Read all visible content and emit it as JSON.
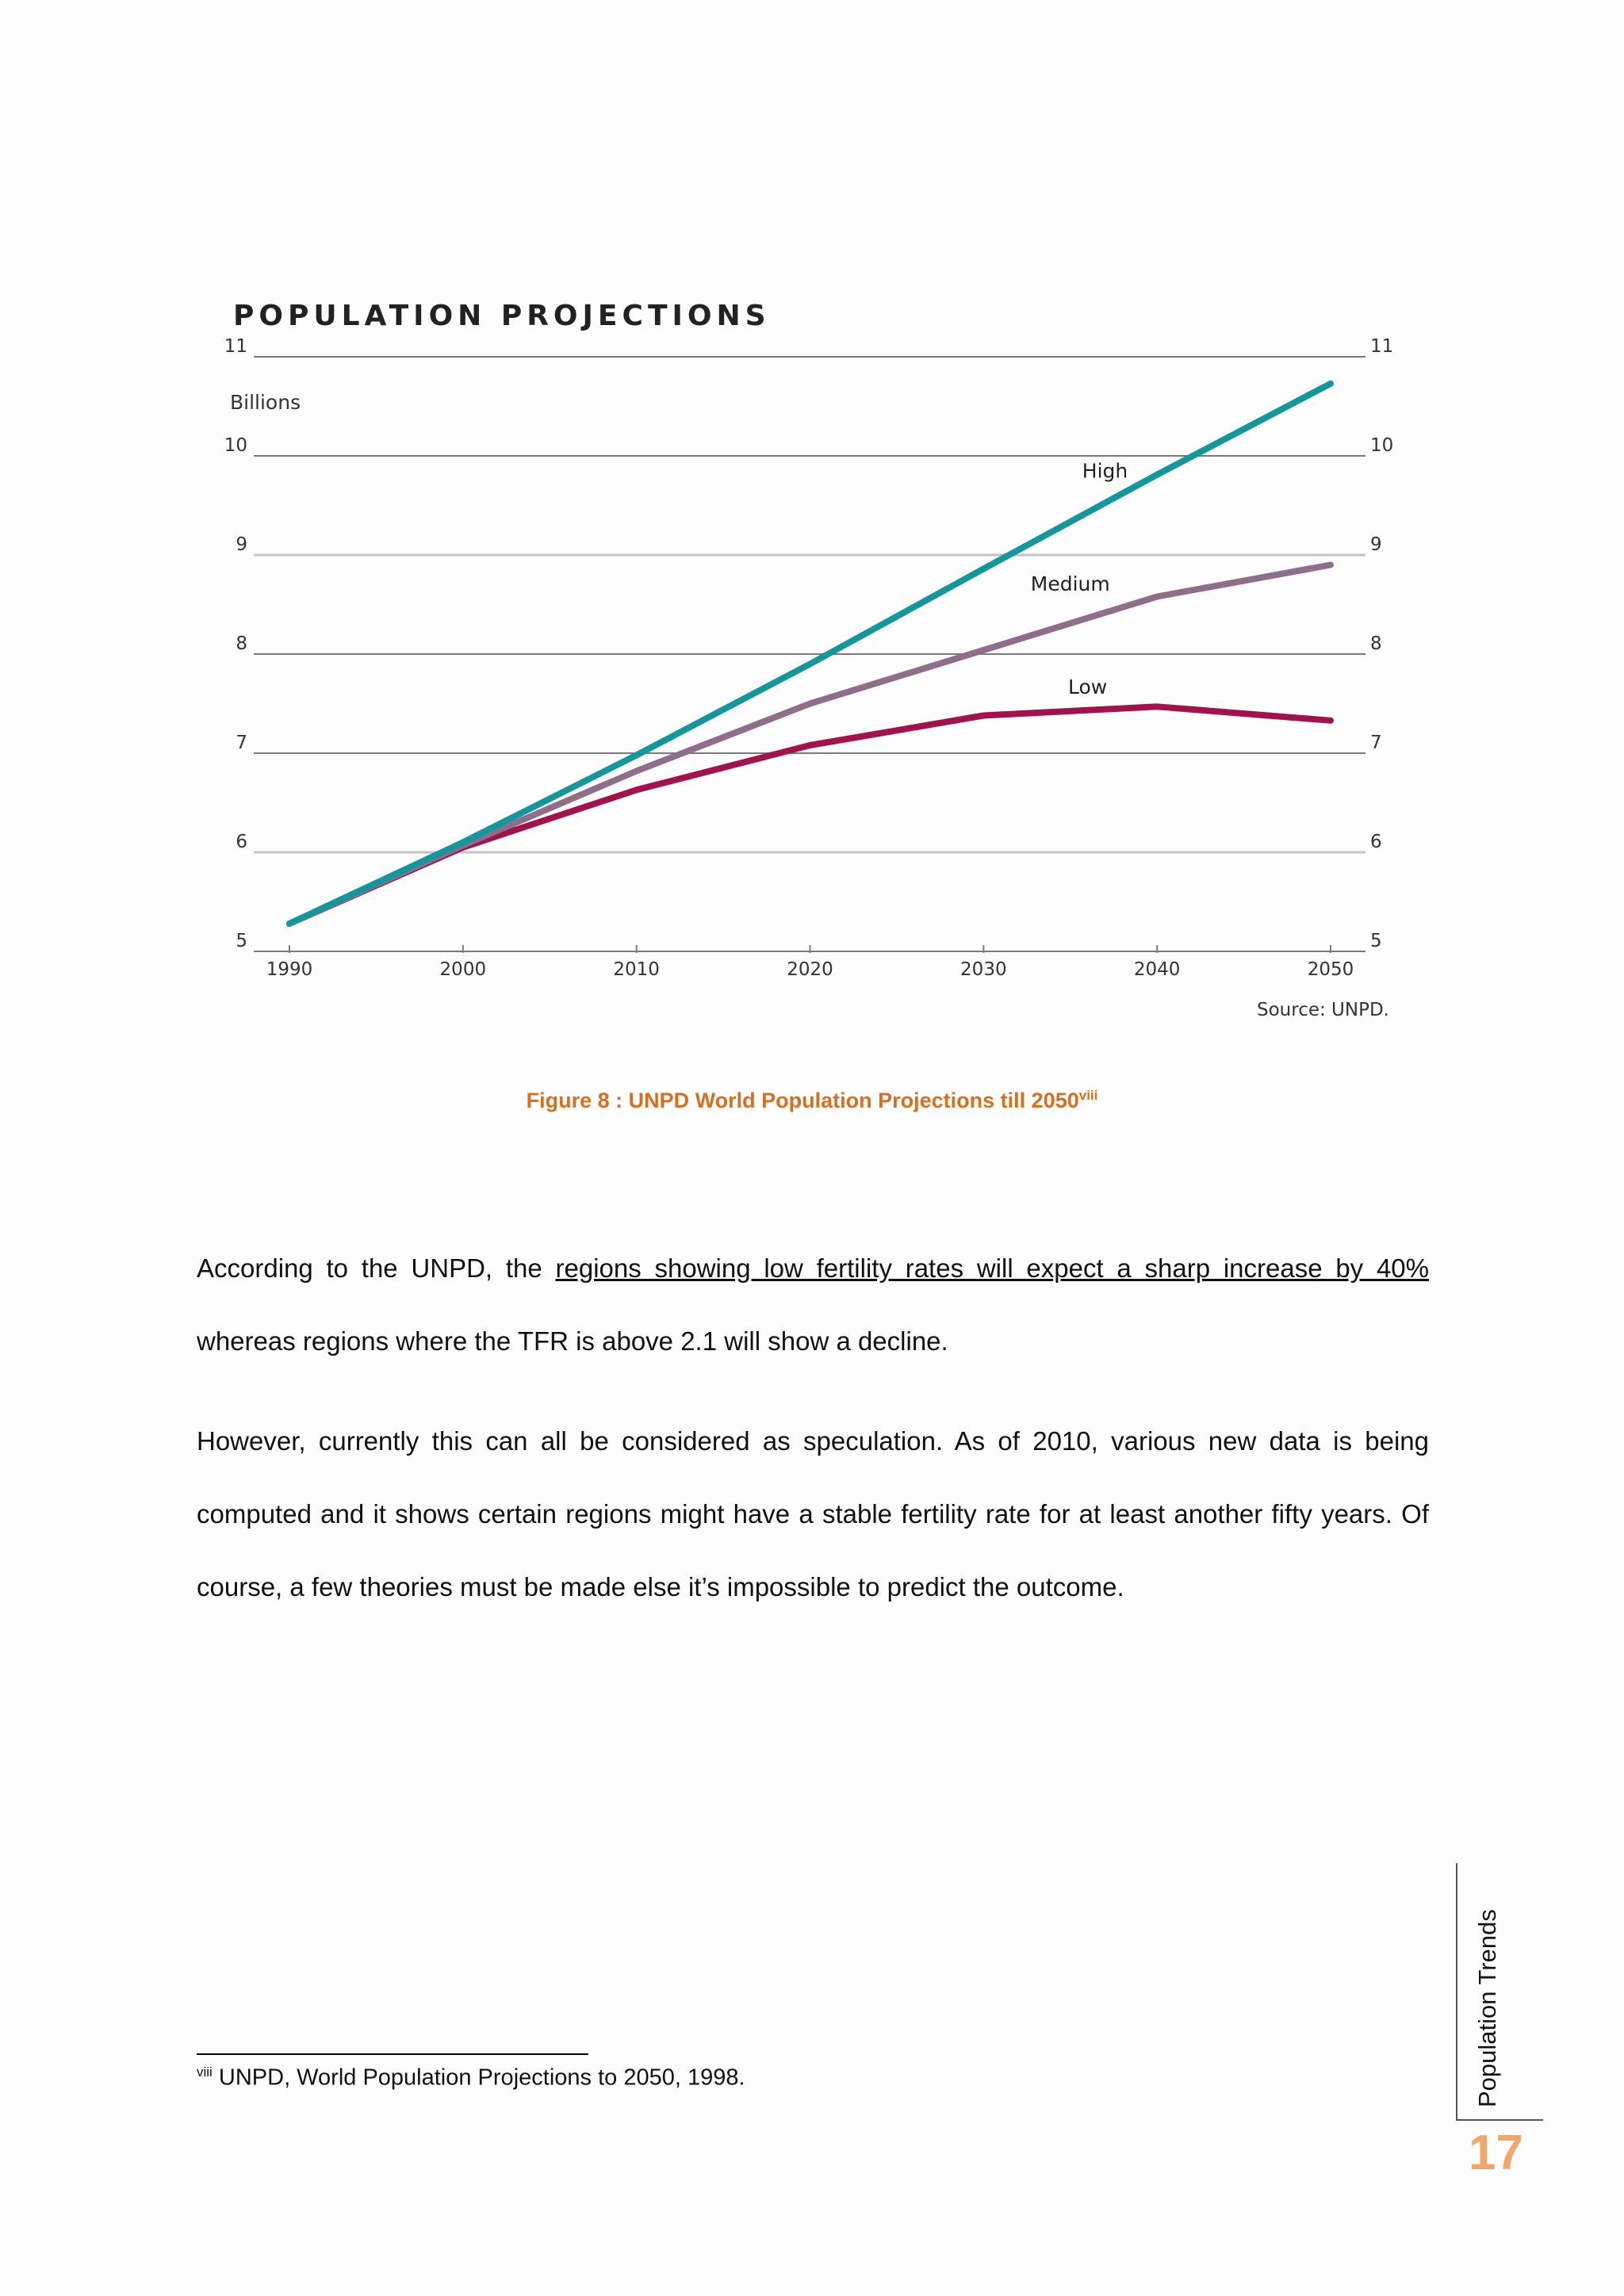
{
  "chart_data": {
    "type": "line",
    "title": "POPULATION PROJECTIONS",
    "ylabel": "Billions",
    "source": "Source: UNPD.",
    "x": [
      1990,
      2000,
      2010,
      2020,
      2030,
      2040,
      2050
    ],
    "x_tick_labels": [
      "1990",
      "2000",
      "2010",
      "2020",
      "2030",
      "2040",
      "2050"
    ],
    "y_ticks": [
      5,
      6,
      7,
      8,
      9,
      10,
      11
    ],
    "y_tick_labels": [
      "5",
      "6",
      "7",
      "8",
      "9",
      "10",
      "11"
    ],
    "ylim": [
      5,
      11
    ],
    "xlim": [
      1990,
      2050
    ],
    "grid": true,
    "series": [
      {
        "name": "High",
        "color": "#14979c",
        "values": [
          5.28,
          6.1,
          6.98,
          7.9,
          8.86,
          9.81,
          10.73
        ]
      },
      {
        "name": "Medium",
        "color": "#8f6e8c",
        "values": [
          5.28,
          6.07,
          6.82,
          7.5,
          8.04,
          8.58,
          8.9
        ]
      },
      {
        "name": "Low",
        "color": "#a3124a",
        "values": [
          5.28,
          6.05,
          6.63,
          7.08,
          7.38,
          7.47,
          7.33
        ]
      }
    ]
  },
  "caption": {
    "text": "Figure 8 : UNPD World Population Projections till 2050",
    "footnote_ref": "viii"
  },
  "paragraphs": {
    "p1_start": "According to the UNPD, the ",
    "p1_underlined": "regions showing low fertility rates will expect a sharp increase by 40%",
    "p1_end": " whereas regions where the TFR is above 2.1 will show a decline.",
    "p2": "However, currently this can all be considered as speculation. As of 2010, various new data is being computed and it shows certain regions might have a stable fertility rate for at least another fifty years. Of course, a few theories must be made else it’s impossible to predict the outcome."
  },
  "footnote": {
    "marker": "viii",
    "text": " UNPD, World Population Projections to 2050, 1998."
  },
  "sidebar": {
    "section_title": "Population Trends",
    "page_number": "17"
  },
  "colors": {
    "caption": "#d86f1e",
    "page_number": "#f2a66a"
  }
}
